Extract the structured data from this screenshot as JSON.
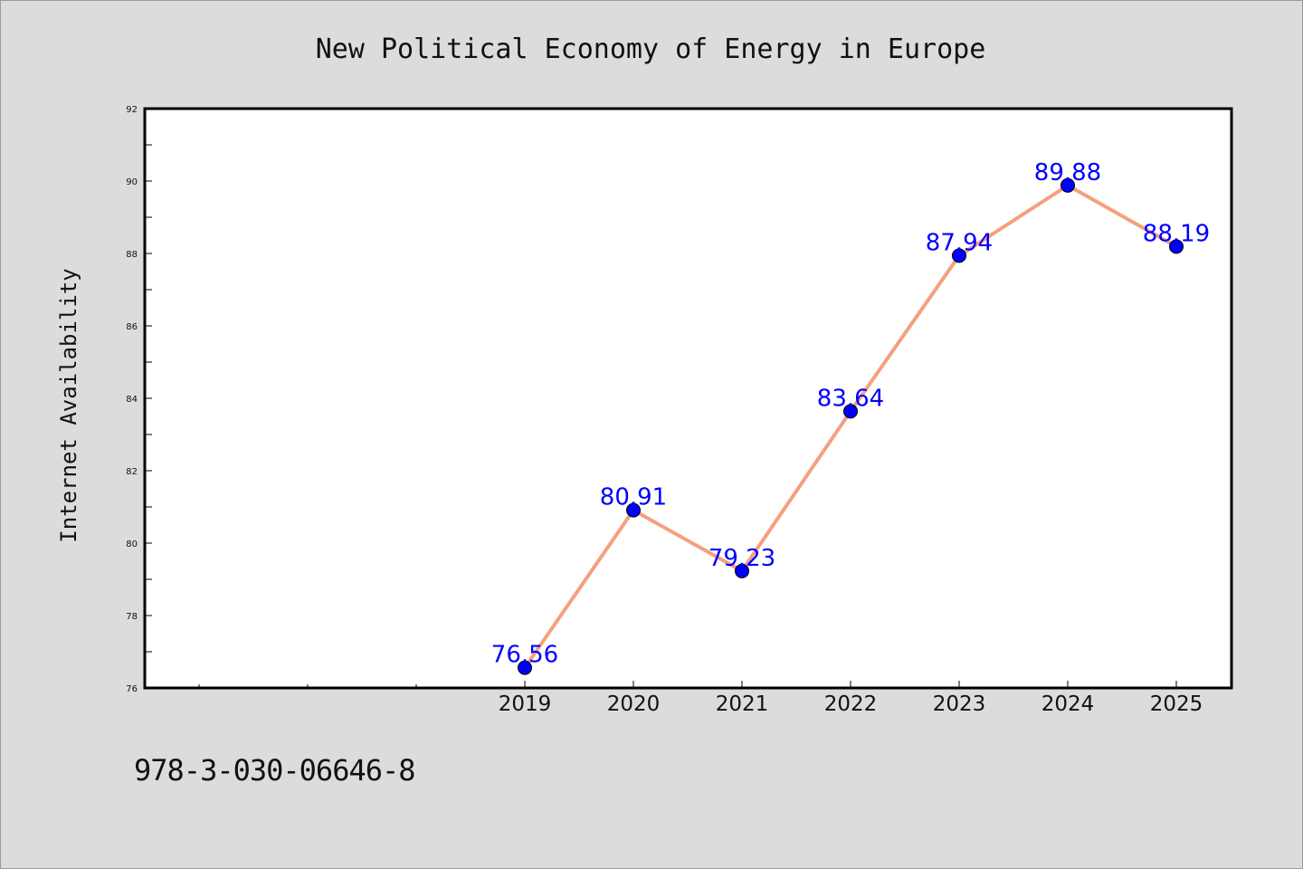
{
  "chart_data": {
    "type": "line",
    "title": "New Political Economy of Energy in Europe",
    "xlabel": "",
    "ylabel": "Internet Availability",
    "categories": [
      "2019",
      "2020",
      "2021",
      "2022",
      "2023",
      "2024",
      "2025"
    ],
    "series": [
      {
        "values": [
          76.56,
          80.91,
          79.23,
          83.64,
          87.94,
          89.88,
          88.19
        ]
      }
    ],
    "data_labels": [
      "76.56",
      "80.91",
      "79.23",
      "83.64",
      "87.94",
      "89.88",
      "88.19"
    ],
    "ylim": [
      76,
      92
    ],
    "yticks": [
      76,
      78,
      80,
      82,
      84,
      86,
      88,
      90,
      92
    ],
    "grid": false,
    "legend": "none",
    "line_color": "#f5a07e",
    "marker_color": "#0000ff",
    "label_color": "#0000ff"
  },
  "footnote": "978-3-030-06646-8"
}
